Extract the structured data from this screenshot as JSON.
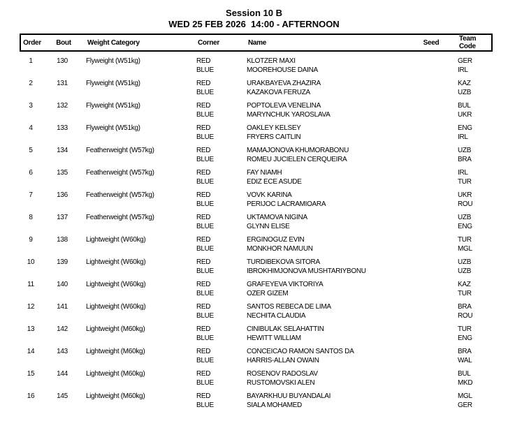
{
  "header": {
    "session_title": "Session 10 B",
    "session_datetime": "WED 25 FEB 2026  14:00 - AFTERNOON"
  },
  "table": {
    "headers": {
      "order": "Order",
      "bout": "Bout",
      "weight": "Weight Category",
      "corner": "Corner",
      "name": "Name",
      "seed": "Seed",
      "team": "Team Code"
    },
    "corner_labels": {
      "red": "RED",
      "blue": "BLUE"
    },
    "bouts": [
      {
        "order": "1",
        "bout": "130",
        "weight": "Flyweight (W51kg)",
        "red": {
          "name": "KLOTZER MAXI",
          "seed": "",
          "team": "GER"
        },
        "blue": {
          "name": "MOOREHOUSE DAINA",
          "seed": "",
          "team": "IRL"
        }
      },
      {
        "order": "2",
        "bout": "131",
        "weight": "Flyweight (W51kg)",
        "red": {
          "name": "URAKBAYEVA ZHAZIRA",
          "seed": "",
          "team": "KAZ"
        },
        "blue": {
          "name": "KAZAKOVA FERUZA",
          "seed": "",
          "team": "UZB"
        }
      },
      {
        "order": "3",
        "bout": "132",
        "weight": "Flyweight (W51kg)",
        "red": {
          "name": "POPTOLEVA VENELINA",
          "seed": "",
          "team": "BUL"
        },
        "blue": {
          "name": "MARYNCHUK YAROSLAVA",
          "seed": "",
          "team": "UKR"
        }
      },
      {
        "order": "4",
        "bout": "133",
        "weight": "Flyweight (W51kg)",
        "red": {
          "name": "OAKLEY KELSEY",
          "seed": "",
          "team": "ENG"
        },
        "blue": {
          "name": "FRYERS CAITLIN",
          "seed": "",
          "team": "IRL"
        }
      },
      {
        "order": "5",
        "bout": "134",
        "weight": "Featherweight (W57kg)",
        "red": {
          "name": "MAMAJONOVA KHUMORABONU",
          "seed": "",
          "team": "UZB"
        },
        "blue": {
          "name": "ROMEU JUCIELEN CERQUEIRA",
          "seed": "",
          "team": "BRA"
        }
      },
      {
        "order": "6",
        "bout": "135",
        "weight": "Featherweight (W57kg)",
        "red": {
          "name": "FAY NIAMH",
          "seed": "",
          "team": "IRL"
        },
        "blue": {
          "name": "EDIZ ECE ASUDE",
          "seed": "",
          "team": "TUR"
        }
      },
      {
        "order": "7",
        "bout": "136",
        "weight": "Featherweight (W57kg)",
        "red": {
          "name": "VOVK KARINA",
          "seed": "",
          "team": "UKR"
        },
        "blue": {
          "name": "PERIJOC LACRAMIOARA",
          "seed": "",
          "team": "ROU"
        }
      },
      {
        "order": "8",
        "bout": "137",
        "weight": "Featherweight (W57kg)",
        "red": {
          "name": "UKTAMOVA NIGINA",
          "seed": "",
          "team": "UZB"
        },
        "blue": {
          "name": "GLYNN ELISE",
          "seed": "",
          "team": "ENG"
        }
      },
      {
        "order": "9",
        "bout": "138",
        "weight": "Lightweight (W60kg)",
        "red": {
          "name": "ERGINOGUZ EVIN",
          "seed": "",
          "team": "TUR"
        },
        "blue": {
          "name": "MONKHOR NAMUUN",
          "seed": "",
          "team": "MGL"
        }
      },
      {
        "order": "10",
        "bout": "139",
        "weight": "Lightweight (W60kg)",
        "red": {
          "name": "TURDIBEKOVA SITORA",
          "seed": "",
          "team": "UZB"
        },
        "blue": {
          "name": "IBROKHIMJONOVA MUSHTARIYBONU",
          "seed": "",
          "team": "UZB"
        }
      },
      {
        "order": "11",
        "bout": "140",
        "weight": "Lightweight (W60kg)",
        "red": {
          "name": "GRAFEYEVA VIKTORIYA",
          "seed": "",
          "team": "KAZ"
        },
        "blue": {
          "name": "OZER GIZEM",
          "seed": "",
          "team": "TUR"
        }
      },
      {
        "order": "12",
        "bout": "141",
        "weight": "Lightweight (W60kg)",
        "red": {
          "name": "SANTOS REBECA DE LIMA",
          "seed": "",
          "team": "BRA"
        },
        "blue": {
          "name": "NECHITA CLAUDIA",
          "seed": "",
          "team": "ROU"
        }
      },
      {
        "order": "13",
        "bout": "142",
        "weight": "Lightweight (M60kg)",
        "red": {
          "name": "CINIBULAK SELAHATTIN",
          "seed": "",
          "team": "TUR"
        },
        "blue": {
          "name": "HEWITT WILLIAM",
          "seed": "",
          "team": "ENG"
        }
      },
      {
        "order": "14",
        "bout": "143",
        "weight": "Lightweight (M60kg)",
        "red": {
          "name": "CONCEICAO RAMON SANTOS DA",
          "seed": "",
          "team": "BRA"
        },
        "blue": {
          "name": "HARRIS-ALLAN OWAIN",
          "seed": "",
          "team": "WAL"
        }
      },
      {
        "order": "15",
        "bout": "144",
        "weight": "Lightweight (M60kg)",
        "red": {
          "name": "ROSENOV RADOSLAV",
          "seed": "",
          "team": "BUL"
        },
        "blue": {
          "name": "RUSTOMOVSKI ALEN",
          "seed": "",
          "team": "MKD"
        }
      },
      {
        "order": "16",
        "bout": "145",
        "weight": "Lightweight (M60kg)",
        "red": {
          "name": "BAYARKHUU BUYANDALAI",
          "seed": "",
          "team": "MGL"
        },
        "blue": {
          "name": "SIALA MOHAMED",
          "seed": "",
          "team": "GER"
        }
      }
    ]
  },
  "colors": {
    "text": "#000000",
    "border": "#000000",
    "background": "#ffffff"
  }
}
